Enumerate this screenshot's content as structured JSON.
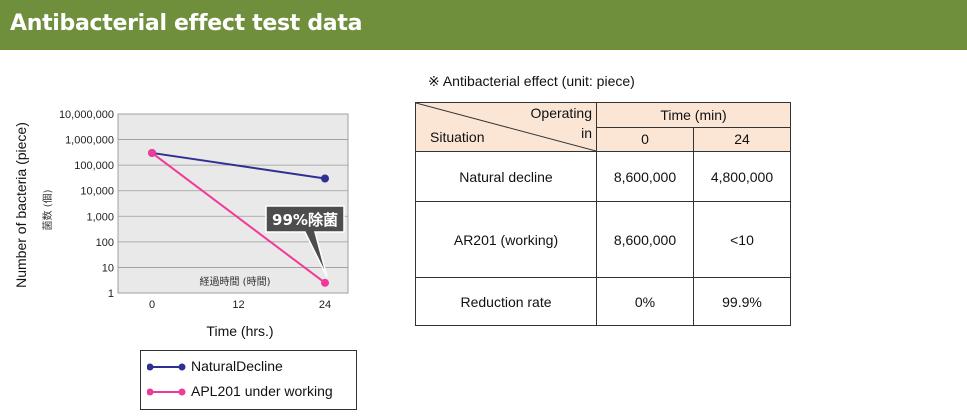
{
  "header": {
    "title": "Antibacterial effect test data"
  },
  "chart_data": {
    "type": "line",
    "x": [
      0,
      24
    ],
    "xticks": [
      "0",
      "12",
      "24"
    ],
    "xlabel": "Time (hrs.)",
    "ylabel": "Number of bacteria (piece)",
    "ylabel_jp": "菌数 (個)",
    "inner_xlabel_jp": "経過時間 (時間)",
    "yscale": "log",
    "yticks": [
      "1",
      "10",
      "100",
      "1,000",
      "10,000",
      "100,000",
      "1,000,000",
      "10,000,000"
    ],
    "ylim": [
      1,
      10000000
    ],
    "xlim": [
      0,
      24
    ],
    "series": [
      {
        "name": "NaturalDecline",
        "x": [
          0,
          24
        ],
        "values": [
          300000,
          30000
        ],
        "color": "#2f3192"
      },
      {
        "name": "APL201 under working",
        "x": [
          0,
          24
        ],
        "values": [
          300000,
          2.5
        ],
        "color": "#ef3a9a"
      }
    ],
    "annotation": "99%除菌",
    "grid": true
  },
  "legend": {
    "items": [
      {
        "label": "NaturalDecline",
        "color": "#2f3192"
      },
      {
        "label": "APL201 under working",
        "color": "#ef3a9a"
      }
    ]
  },
  "table": {
    "caption": "※ Antibacterial effect (unit: piece)",
    "header_operating": "Operating",
    "header_in": "in",
    "header_situation": "Situation",
    "header_time": "Time (min)",
    "col_0": "0",
    "col_24": "24",
    "rows": [
      {
        "label": "Natural decline",
        "v0": "8,600,000",
        "v24": "4,800,000"
      },
      {
        "label": "AR201 (working)",
        "v0": "8,600,000",
        "v24": "<10"
      },
      {
        "label": "Reduction rate",
        "v0": "0%",
        "v24": "99.9%"
      }
    ],
    "header_bg": "#fbe6d6"
  }
}
